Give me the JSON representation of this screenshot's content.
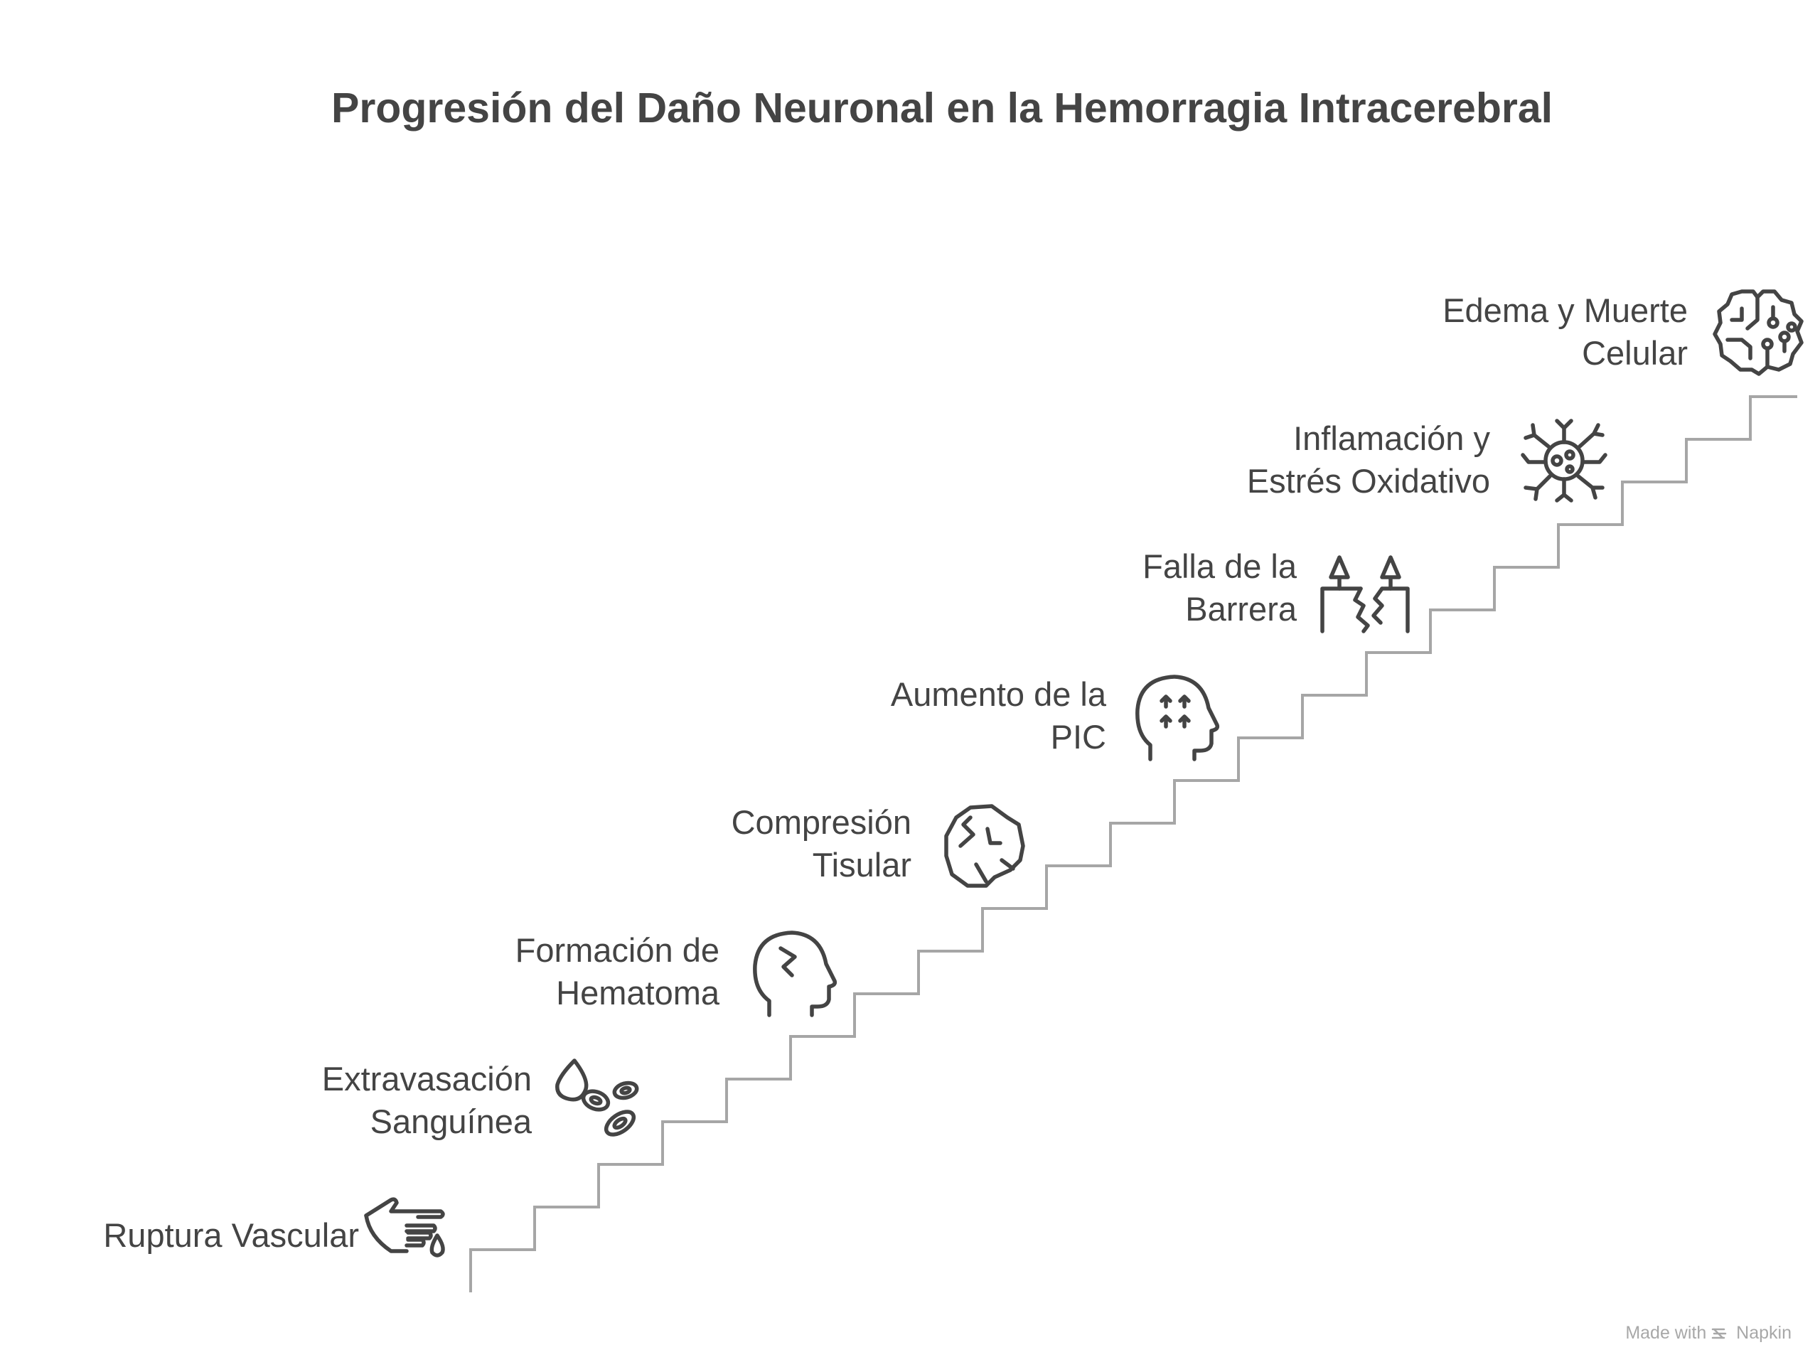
{
  "title": "Progresión del Daño Neuronal en la Hemorragia Intracerebral",
  "steps": [
    {
      "line1": "Ruptura Vascular",
      "line2": "",
      "icon": "pointing-hand-blood-drop-icon"
    },
    {
      "line1": "Extravasación",
      "line2": "Sanguínea",
      "icon": "blood-cells-icon"
    },
    {
      "line1": "Formación de",
      "line2": "Hematoma",
      "icon": "head-crack-icon"
    },
    {
      "line1": "Compresión",
      "line2": "Tisular",
      "icon": "compressed-tissue-icon"
    },
    {
      "line1": "Aumento de la",
      "line2": "PIC",
      "icon": "head-pressure-arrows-icon"
    },
    {
      "line1": "Falla de la",
      "line2": "Barrera",
      "icon": "broken-barrier-icon"
    },
    {
      "line1": "Inflamación y",
      "line2": "Estrés Oxidativo",
      "icon": "inflamed-cell-icon"
    },
    {
      "line1": "Edema y Muerte",
      "line2": "Celular",
      "icon": "brain-circuit-icon"
    }
  ],
  "watermark": {
    "prefix": "Made with",
    "brand": "Napkin"
  },
  "colors": {
    "stairs": "#a6a6a6",
    "text": "#444444",
    "watermark": "#a8a8a8"
  }
}
